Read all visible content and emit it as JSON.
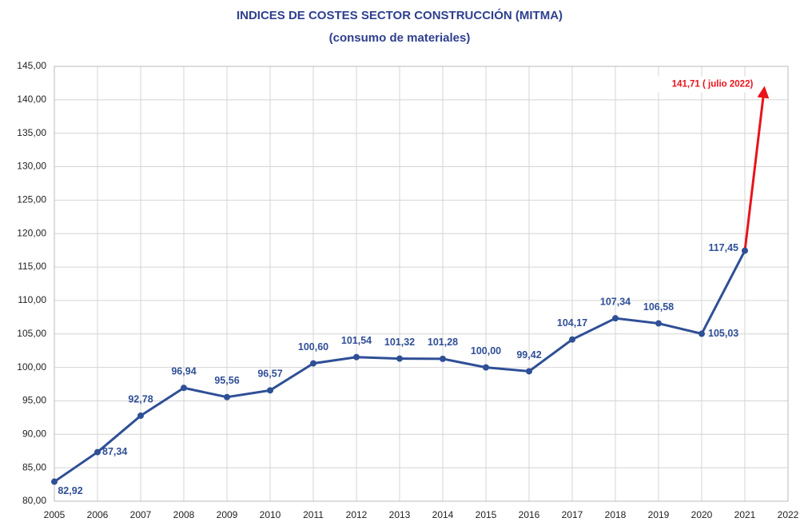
{
  "chart_data": {
    "type": "line",
    "title": "INDICES DE COSTES SECTOR CONSTRUCCIÓN (MITMA)",
    "subtitle": "(consumo de materiales)",
    "x": [
      2005,
      2006,
      2007,
      2008,
      2009,
      2010,
      2011,
      2012,
      2013,
      2014,
      2015,
      2016,
      2017,
      2018,
      2019,
      2020,
      2021
    ],
    "series": [
      {
        "color": "#2f4f96",
        "values": [
          82.92,
          87.34,
          92.78,
          96.94,
          95.56,
          96.57,
          100.6,
          101.54,
          101.32,
          101.28,
          100.0,
          99.42,
          104.17,
          107.34,
          106.58,
          105.03,
          117.45
        ],
        "value_labels": [
          "82,92",
          "87,34",
          "92,78",
          "96,94",
          "95,56",
          "96,57",
          "100,60",
          "101,54",
          "101,32",
          "101,28",
          "100,00",
          "99,42",
          "104,17",
          "107,34",
          "106,58",
          "105,03",
          "117,45"
        ]
      }
    ],
    "annotation": {
      "x": 2021.45,
      "value": 141.71,
      "label": "141,71 ( julio 2022)",
      "color": "#e8141b"
    },
    "xlim": [
      2005,
      2022
    ],
    "xticks": [
      2005,
      2006,
      2007,
      2008,
      2009,
      2010,
      2011,
      2012,
      2013,
      2014,
      2015,
      2016,
      2017,
      2018,
      2019,
      2020,
      2021,
      2022
    ],
    "ylim": [
      80,
      145
    ],
    "yticks": [
      {
        "value": 80,
        "label": "80,00"
      },
      {
        "value": 85,
        "label": "85,00"
      },
      {
        "value": 90,
        "label": "90,00"
      },
      {
        "value": 95,
        "label": "95,00"
      },
      {
        "value": 100,
        "label": "100,00"
      },
      {
        "value": 105,
        "label": "105,00"
      },
      {
        "value": 110,
        "label": "110,00"
      },
      {
        "value": 115,
        "label": "115,00"
      },
      {
        "value": 120,
        "label": "120,00"
      },
      {
        "value": 125,
        "label": "125,00"
      },
      {
        "value": 130,
        "label": "130,00"
      },
      {
        "value": 135,
        "label": "135,00"
      },
      {
        "value": 140,
        "label": "140,00"
      },
      {
        "value": 145,
        "label": "145,00"
      }
    ],
    "grid": true
  }
}
